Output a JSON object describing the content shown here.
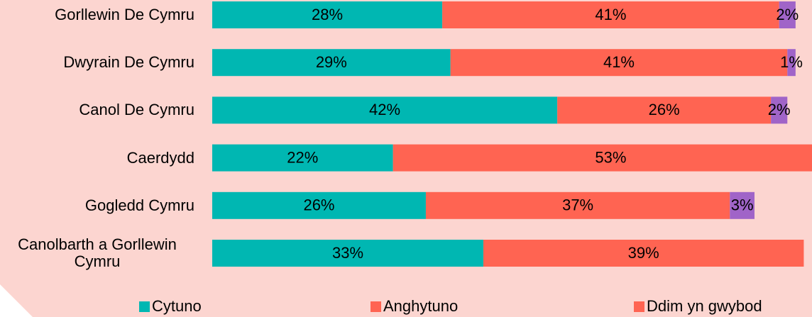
{
  "chart_data": {
    "type": "stacked-bar",
    "categories": [
      "Gorllewin De Cymru",
      "Dwyrain De Cymru",
      "Canol De Cymru",
      "Caerdydd",
      "Gogledd Cymru",
      "Canolbarth a Gorllewin Cymru"
    ],
    "series": [
      {
        "name": "Cytuno",
        "color": "#00b7b2",
        "values": [
          28,
          29,
          42,
          22,
          26,
          33
        ],
        "value_labels": [
          "28%",
          "29%",
          "42%",
          "22%",
          "26%",
          "33%"
        ]
      },
      {
        "name": "Anghytuno",
        "color": "#ff6452",
        "values": [
          41,
          41,
          26,
          53,
          37,
          39
        ],
        "value_labels": [
          "41%",
          "41%",
          "26%",
          "53%",
          "37%",
          "39%"
        ]
      },
      {
        "name": "Ddim yn gwybod",
        "color": "#a064c8",
        "legend_color": "#ff6452",
        "values": [
          2,
          1,
          2,
          null,
          3,
          null
        ],
        "value_labels": [
          "2%",
          "1%",
          "2%",
          null,
          "3%",
          null
        ]
      }
    ],
    "xlim": [
      0,
      73
    ]
  }
}
